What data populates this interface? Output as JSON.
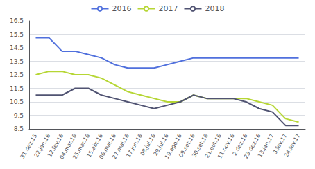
{
  "chart_data": {
    "type": "line",
    "categories": [
      "31.dez.15",
      "22.jan.16",
      "12.fev.16",
      "04.mar.16",
      "25.mar.16",
      "15.abr.16",
      "06.mai.16",
      "27.mai.16",
      "17.jun.16",
      "08.jul.16",
      "29.jul.16",
      "19.ago.16",
      "09.set.16",
      "30.set.16",
      "21.out.16",
      "11.nov.16",
      "2.dez.16",
      "23.dez.16",
      "13.jan.17",
      "3.fev.17",
      "24.fev.17"
    ],
    "series": [
      {
        "name": "2016",
        "values": [
          15.25,
          15.25,
          14.25,
          14.25,
          14.0,
          13.75,
          13.25,
          13.0,
          13.0,
          13.0,
          13.25,
          13.5,
          13.75,
          13.75,
          13.75,
          13.75,
          13.75,
          13.75,
          13.75,
          13.75,
          13.75
        ]
      },
      {
        "name": "2017",
        "values": [
          12.5,
          12.75,
          12.75,
          12.5,
          12.5,
          12.25,
          11.75,
          11.25,
          11.0,
          10.75,
          10.5,
          10.5,
          11.0,
          10.75,
          10.75,
          10.75,
          10.75,
          10.5,
          10.25,
          9.25,
          9.0
        ]
      },
      {
        "name": "2018",
        "values": [
          11.0,
          11.0,
          11.0,
          11.5,
          11.5,
          11.0,
          10.75,
          10.5,
          10.25,
          10.0,
          10.25,
          10.5,
          11.0,
          10.75,
          10.75,
          10.75,
          10.5,
          10.0,
          9.75,
          8.75,
          8.75
        ]
      }
    ],
    "ylim": [
      8.5,
      16.5
    ],
    "yticks": [
      8.5,
      9.5,
      10.5,
      11.5,
      12.5,
      13.5,
      14.5,
      15.5,
      16.5
    ],
    "grid": true,
    "legend": "top"
  }
}
